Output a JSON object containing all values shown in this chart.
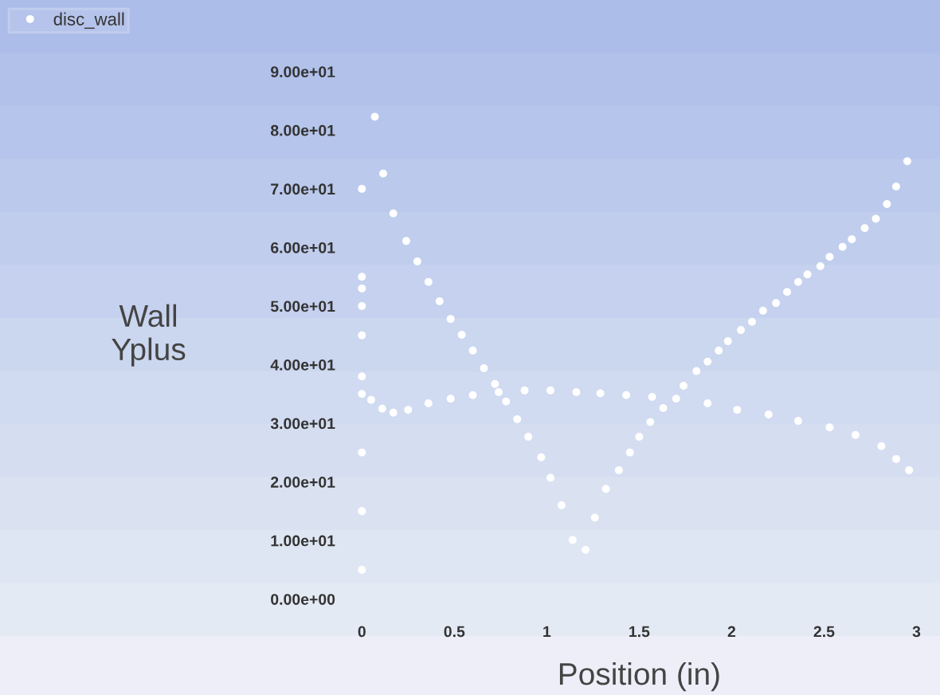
{
  "chart_data": {
    "type": "scatter",
    "xlabel": "Position (in)",
    "ylabel": "Wall\nYplus",
    "series": [
      {
        "name": "disc_wall",
        "color": "#ffffff",
        "x": [
          0.0,
          0.0,
          0.0,
          0.0,
          0.0,
          0.0,
          0.0,
          0.0,
          0.0,
          0.0,
          0.07,
          0.115,
          0.17,
          0.24,
          0.3,
          0.36,
          0.42,
          0.48,
          0.54,
          0.6,
          0.66,
          0.72,
          0.78,
          0.84,
          0.9,
          0.97,
          1.02,
          1.08,
          1.14,
          1.21,
          1.26,
          1.32,
          1.39,
          1.45,
          1.5,
          1.56,
          1.63,
          1.74,
          1.81,
          1.87,
          1.93,
          1.98,
          2.05,
          2.11,
          2.17,
          2.24,
          2.3,
          2.36,
          2.41,
          2.48,
          2.53,
          2.6,
          2.65,
          2.72,
          2.78,
          2.84,
          2.89,
          2.95,
          0.05,
          0.11,
          0.17,
          0.25,
          0.36,
          0.48,
          0.6,
          0.74,
          0.88,
          1.02,
          1.16,
          1.29,
          1.43,
          1.57,
          1.7,
          1.87,
          2.03,
          2.2,
          2.36,
          2.53,
          2.67,
          2.81,
          2.89,
          2.96
        ],
        "values": [
          70,
          55,
          53,
          50,
          45,
          38,
          35,
          25,
          15,
          5,
          82.3,
          72.6,
          65.8,
          61.1,
          57.6,
          54.1,
          50.8,
          47.8,
          45.1,
          42.4,
          39.4,
          36.7,
          33.7,
          30.7,
          27.7,
          24.2,
          20.7,
          16.0,
          10.1,
          8.4,
          13.9,
          18.8,
          22.0,
          25.0,
          27.7,
          30.2,
          32.6,
          36.4,
          38.9,
          40.5,
          42.4,
          44.0,
          45.9,
          47.3,
          49.2,
          50.5,
          52.4,
          54.1,
          55.4,
          56.8,
          58.4,
          60.1,
          61.4,
          63.3,
          64.9,
          67.4,
          70.4,
          74.7,
          34.0,
          32.5,
          31.8,
          32.3,
          33.4,
          34.2,
          34.8,
          35.3,
          35.6,
          35.6,
          35.3,
          35.1,
          34.8,
          34.5,
          34.2,
          33.4,
          32.3,
          31.5,
          30.4,
          29.3,
          28.0,
          26.1,
          23.9,
          22.0
        ]
      }
    ],
    "xlim": [
      0,
      3
    ],
    "xticks": [
      0,
      0.5,
      1,
      1.5,
      2,
      2.5,
      3
    ],
    "ylim": [
      0,
      90
    ],
    "yticks": [
      {
        "value": 0,
        "label": "0.00e+00"
      },
      {
        "value": 10,
        "label": "1.00e+01"
      },
      {
        "value": 20,
        "label": "2.00e+01"
      },
      {
        "value": 30,
        "label": "3.00e+01"
      },
      {
        "value": 40,
        "label": "4.00e+01"
      },
      {
        "value": 50,
        "label": "5.00e+01"
      },
      {
        "value": 60,
        "label": "6.00e+01"
      },
      {
        "value": 70,
        "label": "7.00e+01"
      },
      {
        "value": 80,
        "label": "8.00e+01"
      },
      {
        "value": 90,
        "label": "9.00e+01"
      }
    ],
    "marker": "circle",
    "legend": "top left"
  }
}
